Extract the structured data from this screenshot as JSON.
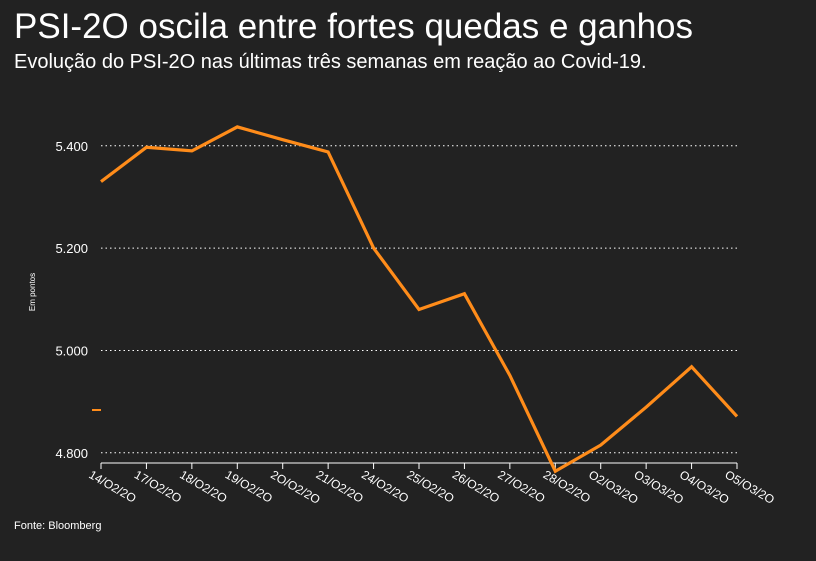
{
  "title": "PSI-2O oscila entre fortes quedas e ganhos",
  "subtitle": "Evolução do PSI-2O nas últimas três semanas em reação ao Covid-19.",
  "source": "Fonte: Bloomberg",
  "colors": {
    "background": "#222222",
    "line": "#ff8c1a",
    "text": "#ffffff",
    "grid": "#ffffff"
  },
  "chart_data": {
    "type": "line",
    "ylabel": "Em pontos",
    "xlabel": "",
    "ylim": [
      4780,
      5470
    ],
    "yticks": [
      4800,
      5000,
      5200,
      5400
    ],
    "ytick_labels": [
      "4.800",
      "5.000",
      "5.200",
      "5.400"
    ],
    "grid": "horizontal dotted",
    "legend": "none",
    "categories": [
      "14/O2/2O",
      "17/O2/2O",
      "18/O2/2O",
      "19/O2/2O",
      "2O/O2/2O",
      "21/O2/2O",
      "24/O2/2O",
      "25/O2/2O",
      "26/O2/2O",
      "27/O2/2O",
      "28/O2/2O",
      "O2/O3/2O",
      "O3/O3/2O",
      "O4/O3/2O",
      "O5/O3/2O"
    ],
    "series": [
      {
        "values": [
          5330,
          5397,
          5390,
          5437,
          5412,
          5388,
          5200,
          5080,
          5111,
          4951,
          4764,
          4815,
          4889,
          4968,
          4871
        ]
      }
    ]
  }
}
